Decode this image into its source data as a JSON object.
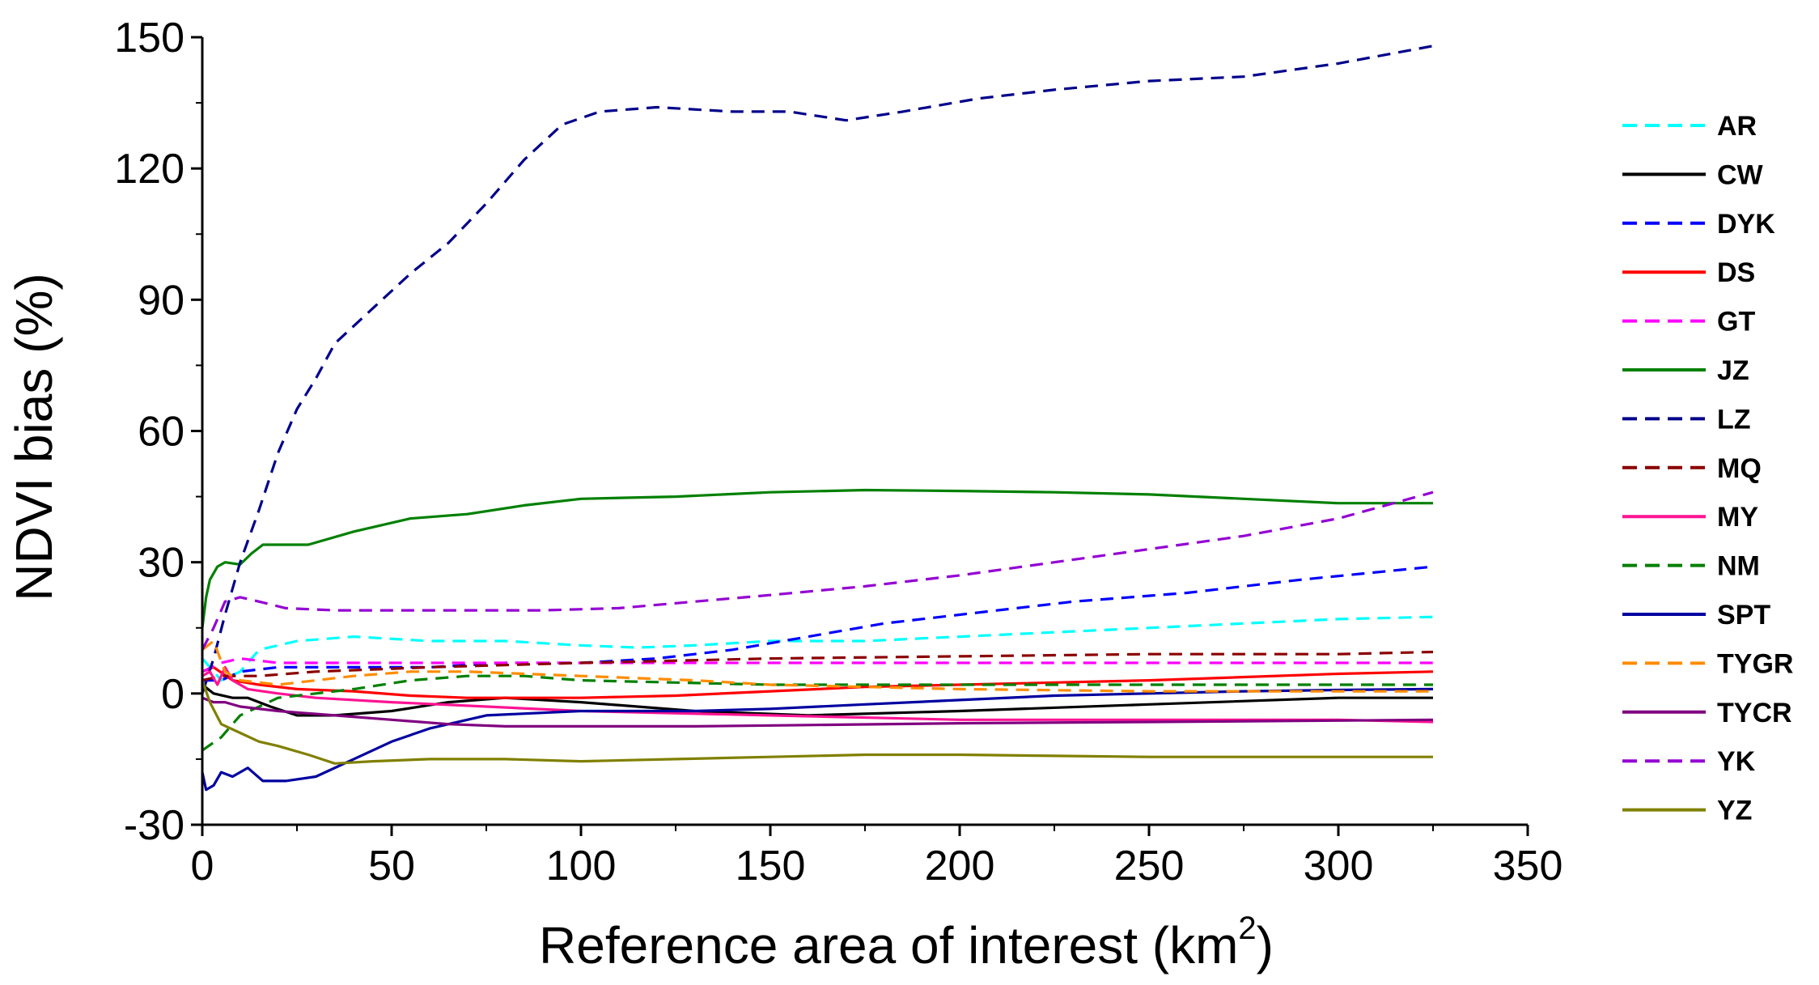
{
  "chart_data": {
    "type": "line",
    "title": "",
    "xlabel": "Reference area of interest (km",
    "xlabel_superscript": "2",
    "xlabel_suffix": ")",
    "ylabel": "NDVI bias (%)",
    "xlim": [
      0,
      350
    ],
    "ylim": [
      -30,
      150
    ],
    "xticks": [
      0,
      50,
      100,
      150,
      200,
      250,
      300,
      350
    ],
    "yticks": [
      -30,
      0,
      30,
      60,
      90,
      120,
      150
    ],
    "grid": false,
    "legend_position": "right",
    "series": [
      {
        "name": "AR",
        "color": "#00FFFF",
        "dash": "dashed",
        "points": [
          [
            0,
            8
          ],
          [
            5,
            3
          ],
          [
            10,
            5
          ],
          [
            15,
            10
          ],
          [
            25,
            12
          ],
          [
            40,
            13
          ],
          [
            60,
            12
          ],
          [
            80,
            12
          ],
          [
            100,
            11
          ],
          [
            115,
            10.5
          ],
          [
            130,
            11
          ],
          [
            150,
            12
          ],
          [
            175,
            12
          ],
          [
            200,
            13
          ],
          [
            225,
            14
          ],
          [
            250,
            15
          ],
          [
            275,
            16
          ],
          [
            300,
            17
          ],
          [
            325,
            17.5
          ]
        ]
      },
      {
        "name": "CW",
        "color": "#000000",
        "dash": "solid",
        "points": [
          [
            0,
            2
          ],
          [
            3,
            0
          ],
          [
            8,
            -1
          ],
          [
            12,
            -1
          ],
          [
            18,
            -3
          ],
          [
            25,
            -5
          ],
          [
            35,
            -5
          ],
          [
            50,
            -4
          ],
          [
            65,
            -2
          ],
          [
            80,
            -1
          ],
          [
            100,
            -2
          ],
          [
            130,
            -4
          ],
          [
            160,
            -5
          ],
          [
            200,
            -4
          ],
          [
            250,
            -2.5
          ],
          [
            300,
            -1
          ],
          [
            325,
            -1
          ]
        ]
      },
      {
        "name": "DYK",
        "color": "#0000FF",
        "dash": "dashed",
        "points": [
          [
            0,
            3
          ],
          [
            5,
            3
          ],
          [
            10,
            5
          ],
          [
            20,
            6
          ],
          [
            40,
            6
          ],
          [
            60,
            6
          ],
          [
            80,
            7
          ],
          [
            100,
            7
          ],
          [
            120,
            8
          ],
          [
            140,
            10
          ],
          [
            160,
            13
          ],
          [
            180,
            16
          ],
          [
            200,
            18
          ],
          [
            230,
            21
          ],
          [
            260,
            23
          ],
          [
            290,
            26
          ],
          [
            325,
            29
          ]
        ]
      },
      {
        "name": "DS",
        "color": "#FF0000",
        "dash": "solid",
        "points": [
          [
            0,
            5
          ],
          [
            3,
            6
          ],
          [
            8,
            3
          ],
          [
            15,
            2
          ],
          [
            25,
            1
          ],
          [
            40,
            0.5
          ],
          [
            55,
            -0.5
          ],
          [
            70,
            -1
          ],
          [
            100,
            -1
          ],
          [
            125,
            -0.5
          ],
          [
            150,
            0.5
          ],
          [
            175,
            1.5
          ],
          [
            200,
            2
          ],
          [
            250,
            3
          ],
          [
            300,
            4.5
          ],
          [
            325,
            5
          ]
        ]
      },
      {
        "name": "GT",
        "color": "#FF00FF",
        "dash": "dashed",
        "points": [
          [
            0,
            5
          ],
          [
            5,
            7
          ],
          [
            10,
            8
          ],
          [
            20,
            7
          ],
          [
            40,
            7
          ],
          [
            60,
            7
          ],
          [
            100,
            7
          ],
          [
            150,
            7
          ],
          [
            200,
            7
          ],
          [
            250,
            7
          ],
          [
            300,
            7
          ],
          [
            325,
            7
          ]
        ]
      },
      {
        "name": "JZ",
        "color": "#008000",
        "dash": "solid",
        "points": [
          [
            0,
            15
          ],
          [
            1,
            22
          ],
          [
            2,
            26
          ],
          [
            4,
            29
          ],
          [
            6,
            30
          ],
          [
            10,
            29.5
          ],
          [
            13,
            32
          ],
          [
            16,
            34
          ],
          [
            20,
            34
          ],
          [
            28,
            34
          ],
          [
            40,
            37
          ],
          [
            55,
            40
          ],
          [
            70,
            41
          ],
          [
            85,
            43
          ],
          [
            100,
            44.5
          ],
          [
            125,
            45
          ],
          [
            150,
            46
          ],
          [
            175,
            46.5
          ],
          [
            200,
            46.3
          ],
          [
            225,
            46
          ],
          [
            250,
            45.5
          ],
          [
            275,
            44.5
          ],
          [
            300,
            43.5
          ],
          [
            325,
            43.5
          ]
        ]
      },
      {
        "name": "LZ",
        "color": "#00008B",
        "dash": "dashed",
        "points": [
          [
            0,
            0
          ],
          [
            3,
            8
          ],
          [
            6,
            18
          ],
          [
            10,
            30
          ],
          [
            15,
            42
          ],
          [
            20,
            55
          ],
          [
            25,
            65
          ],
          [
            30,
            72
          ],
          [
            35,
            80
          ],
          [
            45,
            88
          ],
          [
            55,
            96
          ],
          [
            65,
            103
          ],
          [
            75,
            112
          ],
          [
            85,
            122
          ],
          [
            95,
            130
          ],
          [
            105,
            133
          ],
          [
            120,
            134
          ],
          [
            140,
            133
          ],
          [
            155,
            133
          ],
          [
            170,
            131
          ],
          [
            185,
            133
          ],
          [
            205,
            136
          ],
          [
            225,
            138
          ],
          [
            250,
            140
          ],
          [
            275,
            141
          ],
          [
            300,
            144
          ],
          [
            325,
            148
          ]
        ]
      },
      {
        "name": "MQ",
        "color": "#8B0000",
        "dash": "dashed",
        "points": [
          [
            0,
            3
          ],
          [
            5,
            4
          ],
          [
            15,
            4
          ],
          [
            30,
            5
          ],
          [
            60,
            6
          ],
          [
            100,
            7
          ],
          [
            150,
            8
          ],
          [
            200,
            8.5
          ],
          [
            250,
            9
          ],
          [
            300,
            9
          ],
          [
            325,
            9.5
          ]
        ]
      },
      {
        "name": "MY",
        "color": "#FF1493",
        "dash": "solid",
        "points": [
          [
            0,
            4
          ],
          [
            2,
            5
          ],
          [
            4,
            2
          ],
          [
            6,
            6
          ],
          [
            8,
            3
          ],
          [
            12,
            1
          ],
          [
            20,
            0
          ],
          [
            30,
            -1
          ],
          [
            50,
            -2
          ],
          [
            75,
            -3
          ],
          [
            100,
            -4
          ],
          [
            150,
            -5
          ],
          [
            200,
            -6
          ],
          [
            250,
            -6
          ],
          [
            300,
            -6
          ],
          [
            325,
            -6.5
          ]
        ]
      },
      {
        "name": "NM",
        "color": "#008000",
        "dash": "dashed",
        "points": [
          [
            0,
            -13
          ],
          [
            5,
            -10
          ],
          [
            10,
            -5
          ],
          [
            20,
            -1
          ],
          [
            30,
            0
          ],
          [
            40,
            1
          ],
          [
            55,
            3
          ],
          [
            70,
            4
          ],
          [
            85,
            4
          ],
          [
            100,
            3
          ],
          [
            125,
            2.5
          ],
          [
            150,
            2
          ],
          [
            200,
            2
          ],
          [
            250,
            2
          ],
          [
            300,
            2
          ],
          [
            325,
            2
          ]
        ]
      },
      {
        "name": "SPT",
        "color": "#0000A0",
        "dash": "solid",
        "points": [
          [
            0,
            -18
          ],
          [
            1,
            -22
          ],
          [
            3,
            -21
          ],
          [
            5,
            -18
          ],
          [
            8,
            -19
          ],
          [
            12,
            -17
          ],
          [
            16,
            -20
          ],
          [
            22,
            -20
          ],
          [
            30,
            -19
          ],
          [
            40,
            -15
          ],
          [
            50,
            -11
          ],
          [
            60,
            -8
          ],
          [
            75,
            -5
          ],
          [
            100,
            -4
          ],
          [
            130,
            -4
          ],
          [
            150,
            -3.5
          ],
          [
            175,
            -2.5
          ],
          [
            200,
            -1.5
          ],
          [
            225,
            -0.5
          ],
          [
            250,
            0
          ],
          [
            275,
            0.5
          ],
          [
            300,
            0.8
          ],
          [
            325,
            1
          ]
        ]
      },
      {
        "name": "TYGR",
        "color": "#FF8C00",
        "dash": "dashed",
        "points": [
          [
            0,
            10
          ],
          [
            3,
            12
          ],
          [
            6,
            5
          ],
          [
            10,
            3
          ],
          [
            20,
            2
          ],
          [
            30,
            3
          ],
          [
            40,
            4
          ],
          [
            55,
            5
          ],
          [
            70,
            5
          ],
          [
            100,
            4
          ],
          [
            130,
            3
          ],
          [
            150,
            2
          ],
          [
            175,
            1.5
          ],
          [
            200,
            1
          ],
          [
            250,
            0.5
          ],
          [
            300,
            0.5
          ],
          [
            325,
            0.5
          ]
        ]
      },
      {
        "name": "TYCR",
        "color": "#800080",
        "dash": "solid",
        "points": [
          [
            0,
            -1
          ],
          [
            3,
            -2
          ],
          [
            6,
            -2
          ],
          [
            10,
            -3
          ],
          [
            20,
            -4
          ],
          [
            35,
            -5
          ],
          [
            50,
            -6
          ],
          [
            65,
            -7
          ],
          [
            80,
            -7.5
          ],
          [
            100,
            -7.5
          ],
          [
            130,
            -7.5
          ],
          [
            160,
            -7.2
          ],
          [
            200,
            -6.8
          ],
          [
            250,
            -6.5
          ],
          [
            300,
            -6.2
          ],
          [
            325,
            -6
          ]
        ]
      },
      {
        "name": "YK",
        "color": "#9400D3",
        "dash": "dashed",
        "points": [
          [
            0,
            10
          ],
          [
            3,
            15
          ],
          [
            6,
            21
          ],
          [
            10,
            22
          ],
          [
            15,
            21
          ],
          [
            22,
            19.5
          ],
          [
            35,
            19
          ],
          [
            50,
            19
          ],
          [
            70,
            19
          ],
          [
            90,
            19
          ],
          [
            110,
            19.5
          ],
          [
            130,
            21
          ],
          [
            150,
            22.5
          ],
          [
            175,
            24.5
          ],
          [
            200,
            27
          ],
          [
            225,
            30
          ],
          [
            250,
            33
          ],
          [
            275,
            36
          ],
          [
            300,
            40
          ],
          [
            325,
            46
          ]
        ]
      },
      {
        "name": "YZ",
        "color": "#808000",
        "dash": "solid",
        "points": [
          [
            0,
            3
          ],
          [
            2,
            -2
          ],
          [
            5,
            -7
          ],
          [
            10,
            -9
          ],
          [
            15,
            -11
          ],
          [
            20,
            -12
          ],
          [
            28,
            -14
          ],
          [
            35,
            -16
          ],
          [
            45,
            -15.5
          ],
          [
            60,
            -15
          ],
          [
            80,
            -15
          ],
          [
            100,
            -15.5
          ],
          [
            125,
            -15
          ],
          [
            150,
            -14.5
          ],
          [
            175,
            -14
          ],
          [
            200,
            -14
          ],
          [
            250,
            -14.5
          ],
          [
            300,
            -14.5
          ],
          [
            325,
            -14.5
          ]
        ]
      }
    ]
  }
}
